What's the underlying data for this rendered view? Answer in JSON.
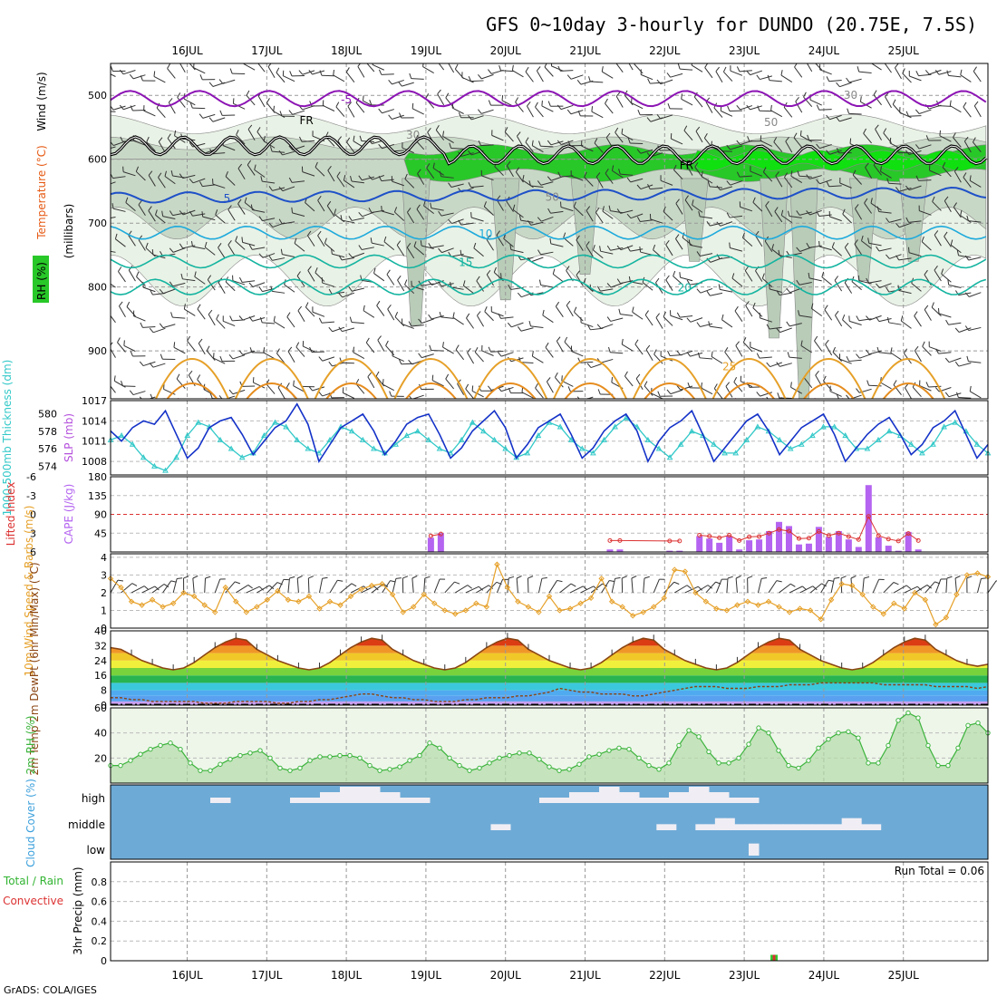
{
  "title": "GFS 0~10day 3-hourly for DUNDO (20.75E, 7.5S)",
  "footer": "GrADS: COLA/IGES",
  "colors": {
    "rh_green": "#28c828",
    "rh_dark": "#0a7a0a",
    "rh_grey": "#a8c4a8",
    "temp_purple": "#8c14b4",
    "temp_blue": "#1e50c8",
    "temp_cyan": "#1eaadc",
    "temp_teal": "#14b4a0",
    "temp_orange": "#e6a028",
    "temp_red": "#e61478",
    "slp": "#1432c8",
    "thick": "#32c8c8",
    "cape": "#b464f0",
    "li": "#dc3232",
    "wind": "#e6a028",
    "rh2m": "#3cb43c",
    "cloud_bg": "#6eaad6",
    "cloud_fill": "#f0eef4",
    "precip_green": "#32c832",
    "precip_red": "#dc3232"
  },
  "chart_data": [
    {
      "name": "upper-air",
      "type": "heatmap",
      "x_ticks": [
        "16JUL",
        "17JUL",
        "18JUL",
        "19JUL",
        "20JUL",
        "21JUL",
        "22JUL",
        "23JUL",
        "24JUL",
        "25JUL"
      ],
      "ylabel_parts": [
        "RH (%)",
        "Temperature (°C)",
        "Wind (m/s)"
      ],
      "ylabel2": "(millibars)",
      "y_ticks": [
        500,
        600,
        700,
        800,
        900
      ],
      "ylim": [
        450,
        975
      ],
      "temperature_contours": [
        {
          "value": -5,
          "label": "-5"
        },
        {
          "value": 5,
          "label": "5"
        },
        {
          "value": 10,
          "label": "10"
        },
        {
          "value": 15,
          "label": "15"
        },
        {
          "value": 20,
          "label": "20"
        },
        {
          "value": 25,
          "label": "25"
        }
      ],
      "freezing_label": "FR",
      "rh_labels": [
        "30",
        "50"
      ]
    },
    {
      "name": "slp-thickness",
      "type": "line",
      "ylabel_left": "1000-500mb Thickness (dm)",
      "ylabel_right": "SLP (mb)",
      "left_ticks": [
        574,
        576,
        578,
        580
      ],
      "right_ticks": [
        1008,
        1011,
        1014,
        1017
      ],
      "ylim_right": [
        1006,
        1017
      ],
      "ylim_left": [
        573,
        581.5
      ],
      "series": [
        {
          "name": "SLP",
          "values": [
            1012.5,
            1011,
            1013,
            1014,
            1013.5,
            1015.5,
            1012,
            1008.5,
            1010,
            1013,
            1014,
            1014.5,
            1012,
            1009,
            1011,
            1013,
            1014,
            1016.5,
            1013.5,
            1008,
            1010.5,
            1013,
            1014,
            1015,
            1012.5,
            1009,
            1011,
            1013.5,
            1014.5,
            1015,
            1012,
            1008.5,
            1010,
            1012.5,
            1014,
            1015.5,
            1013,
            1008.5,
            1010.5,
            1013,
            1014,
            1015,
            1012,
            1008.5,
            1010,
            1012.5,
            1014,
            1015,
            1012.5,
            1008,
            1011,
            1013,
            1014,
            1015.5,
            1012,
            1008,
            1010,
            1012,
            1014,
            1015,
            1012.5,
            1009,
            1011,
            1013,
            1014,
            1015,
            1012,
            1008,
            1010,
            1012,
            1013.5,
            1014.5,
            1012,
            1009,
            1010.5,
            1013,
            1014,
            1015.5,
            1012,
            1008.5,
            1010.5
          ]
        },
        {
          "name": "Thickness",
          "values": [
            577,
            577.5,
            576.5,
            575,
            574,
            573.5,
            575,
            577.5,
            579,
            578.5,
            577,
            576,
            575,
            575.5,
            577.5,
            579,
            578.5,
            577,
            576,
            575.5,
            577,
            578.5,
            578,
            577,
            576,
            575.5,
            576.5,
            577.5,
            578,
            577,
            576,
            575.5,
            577,
            579,
            578,
            577,
            576,
            575,
            575.5,
            577.5,
            579,
            578.5,
            577,
            576,
            575.5,
            577,
            578.5,
            579.5,
            578.5,
            577,
            576,
            575,
            576.5,
            578,
            577.5,
            576.5,
            575.5,
            575.5,
            577,
            578.5,
            578,
            577,
            576,
            576.5,
            577.5,
            578.5,
            578.5,
            577.5,
            576,
            576,
            577,
            578,
            577.5,
            576.5,
            575.5,
            576.5,
            578.5,
            579,
            578,
            576.5,
            575.5
          ]
        }
      ]
    },
    {
      "name": "cape-lifted-index",
      "type": "bar",
      "ylabel_left": "Lifted Index",
      "ylabel_right": "CAPE (J/kg)",
      "cape_ticks": [
        45,
        90,
        135,
        180
      ],
      "li_ticks": [
        "6",
        "3",
        "0",
        "-3",
        "-6"
      ],
      "ylim": [
        0,
        180
      ],
      "cape_bars": [
        {
          "t": 28.5,
          "v": 34
        },
        {
          "t": 29.5,
          "v": 45
        },
        {
          "t": 46.5,
          "v": 6
        },
        {
          "t": 47.5,
          "v": 6
        },
        {
          "t": 52.5,
          "v": 3
        },
        {
          "t": 53.5,
          "v": 3
        },
        {
          "t": 55.5,
          "v": 38
        },
        {
          "t": 56.5,
          "v": 32
        },
        {
          "t": 57.5,
          "v": 22
        },
        {
          "t": 58.5,
          "v": 38
        },
        {
          "t": 59.5,
          "v": 6
        },
        {
          "t": 60.5,
          "v": 28
        },
        {
          "t": 61.5,
          "v": 30
        },
        {
          "t": 62.5,
          "v": 50
        },
        {
          "t": 63.5,
          "v": 72
        },
        {
          "t": 64.5,
          "v": 62
        },
        {
          "t": 65.5,
          "v": 18
        },
        {
          "t": 66.5,
          "v": 20
        },
        {
          "t": 67.5,
          "v": 60
        },
        {
          "t": 68.5,
          "v": 36
        },
        {
          "t": 69.5,
          "v": 50
        },
        {
          "t": 70.5,
          "v": 30
        },
        {
          "t": 71.5,
          "v": 12
        },
        {
          "t": 72.5,
          "v": 160
        },
        {
          "t": 73.5,
          "v": 35
        },
        {
          "t": 74.5,
          "v": 15
        },
        {
          "t": 75.5,
          "v": 3
        },
        {
          "t": 76.5,
          "v": 48
        },
        {
          "t": 77.5,
          "v": 6
        }
      ]
    },
    {
      "name": "wind-10m",
      "type": "line",
      "ylabel": "10m Wind Speed & Barbs (m/s)",
      "y_ticks": [
        0,
        1,
        2,
        3,
        4
      ],
      "ylim": [
        0,
        4.2
      ],
      "values": [
        2.8,
        2.3,
        1.5,
        1.3,
        1.6,
        1.2,
        1.4,
        2.0,
        1.8,
        1.3,
        0.9,
        2.3,
        1.5,
        0.9,
        1.2,
        1.6,
        2.1,
        1.6,
        1.5,
        1.8,
        1.1,
        1.5,
        1.3,
        1.8,
        2.2,
        2.4,
        2.5,
        1.9,
        0.9,
        1.2,
        1.9,
        1.4,
        1.0,
        0.8,
        1.0,
        1.4,
        1.2,
        3.6,
        2.3,
        1.5,
        1.2,
        0.9,
        1.8,
        1.0,
        1.1,
        1.4,
        1.7,
        2.8,
        1.5,
        1.2,
        0.7,
        0.9,
        1.2,
        1.7,
        3.3,
        3.2,
        2.0,
        1.5,
        1.1,
        1.0,
        1.3,
        1.5,
        1.3,
        1.5,
        1.2,
        0.9,
        1.1,
        1.0,
        0.5,
        1.6,
        2.5,
        2.4,
        1.9,
        1.2,
        0.8,
        1.4,
        1.1,
        2.0,
        1.6,
        0.2,
        0.6,
        1.9,
        3.0,
        3.1,
        2.9
      ]
    },
    {
      "name": "temperature-2m",
      "type": "area",
      "ylabel": "2m Temp 2m DewPt (6hr Min/Max) (°C)",
      "y_ticks": [
        0,
        8,
        16,
        24,
        32,
        40
      ],
      "ylim": [
        0,
        40
      ],
      "temp": [
        31,
        30,
        27,
        24,
        22,
        20,
        19,
        20,
        23,
        27,
        31,
        34,
        36,
        35,
        30,
        27,
        24,
        22,
        20,
        19,
        20,
        23,
        27,
        31,
        34,
        36,
        35,
        30,
        27,
        24,
        22,
        20,
        19,
        20,
        23,
        27,
        31,
        34,
        36,
        35,
        30,
        27,
        24,
        22,
        20,
        19,
        20,
        23,
        27,
        31,
        34,
        36,
        35,
        30,
        27,
        24,
        22,
        20,
        19,
        20,
        23,
        27,
        31,
        34,
        36,
        35,
        30,
        27,
        24,
        22,
        20,
        19,
        20,
        23,
        27,
        31,
        34,
        36,
        35,
        30,
        27,
        24,
        22,
        21,
        22
      ],
      "dewpoint": [
        4,
        4,
        3,
        3,
        2,
        2,
        2,
        2,
        2,
        1,
        1,
        1,
        2,
        2,
        2,
        2,
        1,
        1,
        2,
        2,
        3,
        3,
        4,
        5,
        6,
        6,
        5,
        4,
        4,
        3,
        3,
        2,
        2,
        2,
        3,
        3,
        4,
        4,
        4,
        5,
        5,
        6,
        7,
        9,
        8,
        7,
        7,
        6,
        6,
        6,
        5,
        5,
        6,
        7,
        8,
        9,
        10,
        10,
        10,
        9,
        9,
        9,
        10,
        10,
        10,
        11,
        11,
        11,
        12,
        12,
        12,
        12,
        12,
        12,
        11,
        11,
        11,
        11,
        11,
        10,
        10,
        10,
        10,
        9,
        10
      ]
    },
    {
      "name": "rh-2m",
      "type": "area",
      "ylabel": "2m RH (%)",
      "y_ticks": [
        20,
        40,
        60
      ],
      "ylim": [
        0,
        60
      ],
      "values": [
        14,
        14,
        18,
        23,
        27,
        30,
        32,
        27,
        16,
        10,
        10,
        15,
        19,
        22,
        24,
        26,
        20,
        12,
        10,
        12,
        18,
        21,
        21,
        22,
        22,
        20,
        14,
        10,
        11,
        13,
        18,
        22,
        32,
        28,
        20,
        14,
        10,
        12,
        16,
        20,
        22,
        24,
        24,
        19,
        13,
        10,
        11,
        15,
        21,
        23,
        26,
        28,
        27,
        20,
        14,
        11,
        16,
        30,
        42,
        37,
        25,
        16,
        16,
        20,
        31,
        44,
        40,
        26,
        14,
        12,
        18,
        28,
        35,
        40,
        41,
        36,
        16,
        16,
        30,
        50,
        56,
        52,
        30,
        14,
        14,
        28,
        46,
        48,
        40
      ]
    },
    {
      "name": "cloud-cover",
      "type": "heatmap",
      "ylabel": "Cloud Cover (%)",
      "levels": [
        "high",
        "middle",
        "low"
      ]
    },
    {
      "name": "precipitation",
      "type": "bar",
      "ylabel_left": "Total / Rain",
      "ylabel_left2": "Convective",
      "ylabel": "3hr Precip (mm)",
      "y_ticks": [
        0,
        0.2,
        0.4,
        0.6,
        0.8
      ],
      "ylim": [
        0,
        1.0
      ],
      "run_total": "Run Total = 0.06",
      "bars": [
        {
          "t": 63,
          "total": 0.06,
          "convective": 0.06
        }
      ]
    }
  ]
}
